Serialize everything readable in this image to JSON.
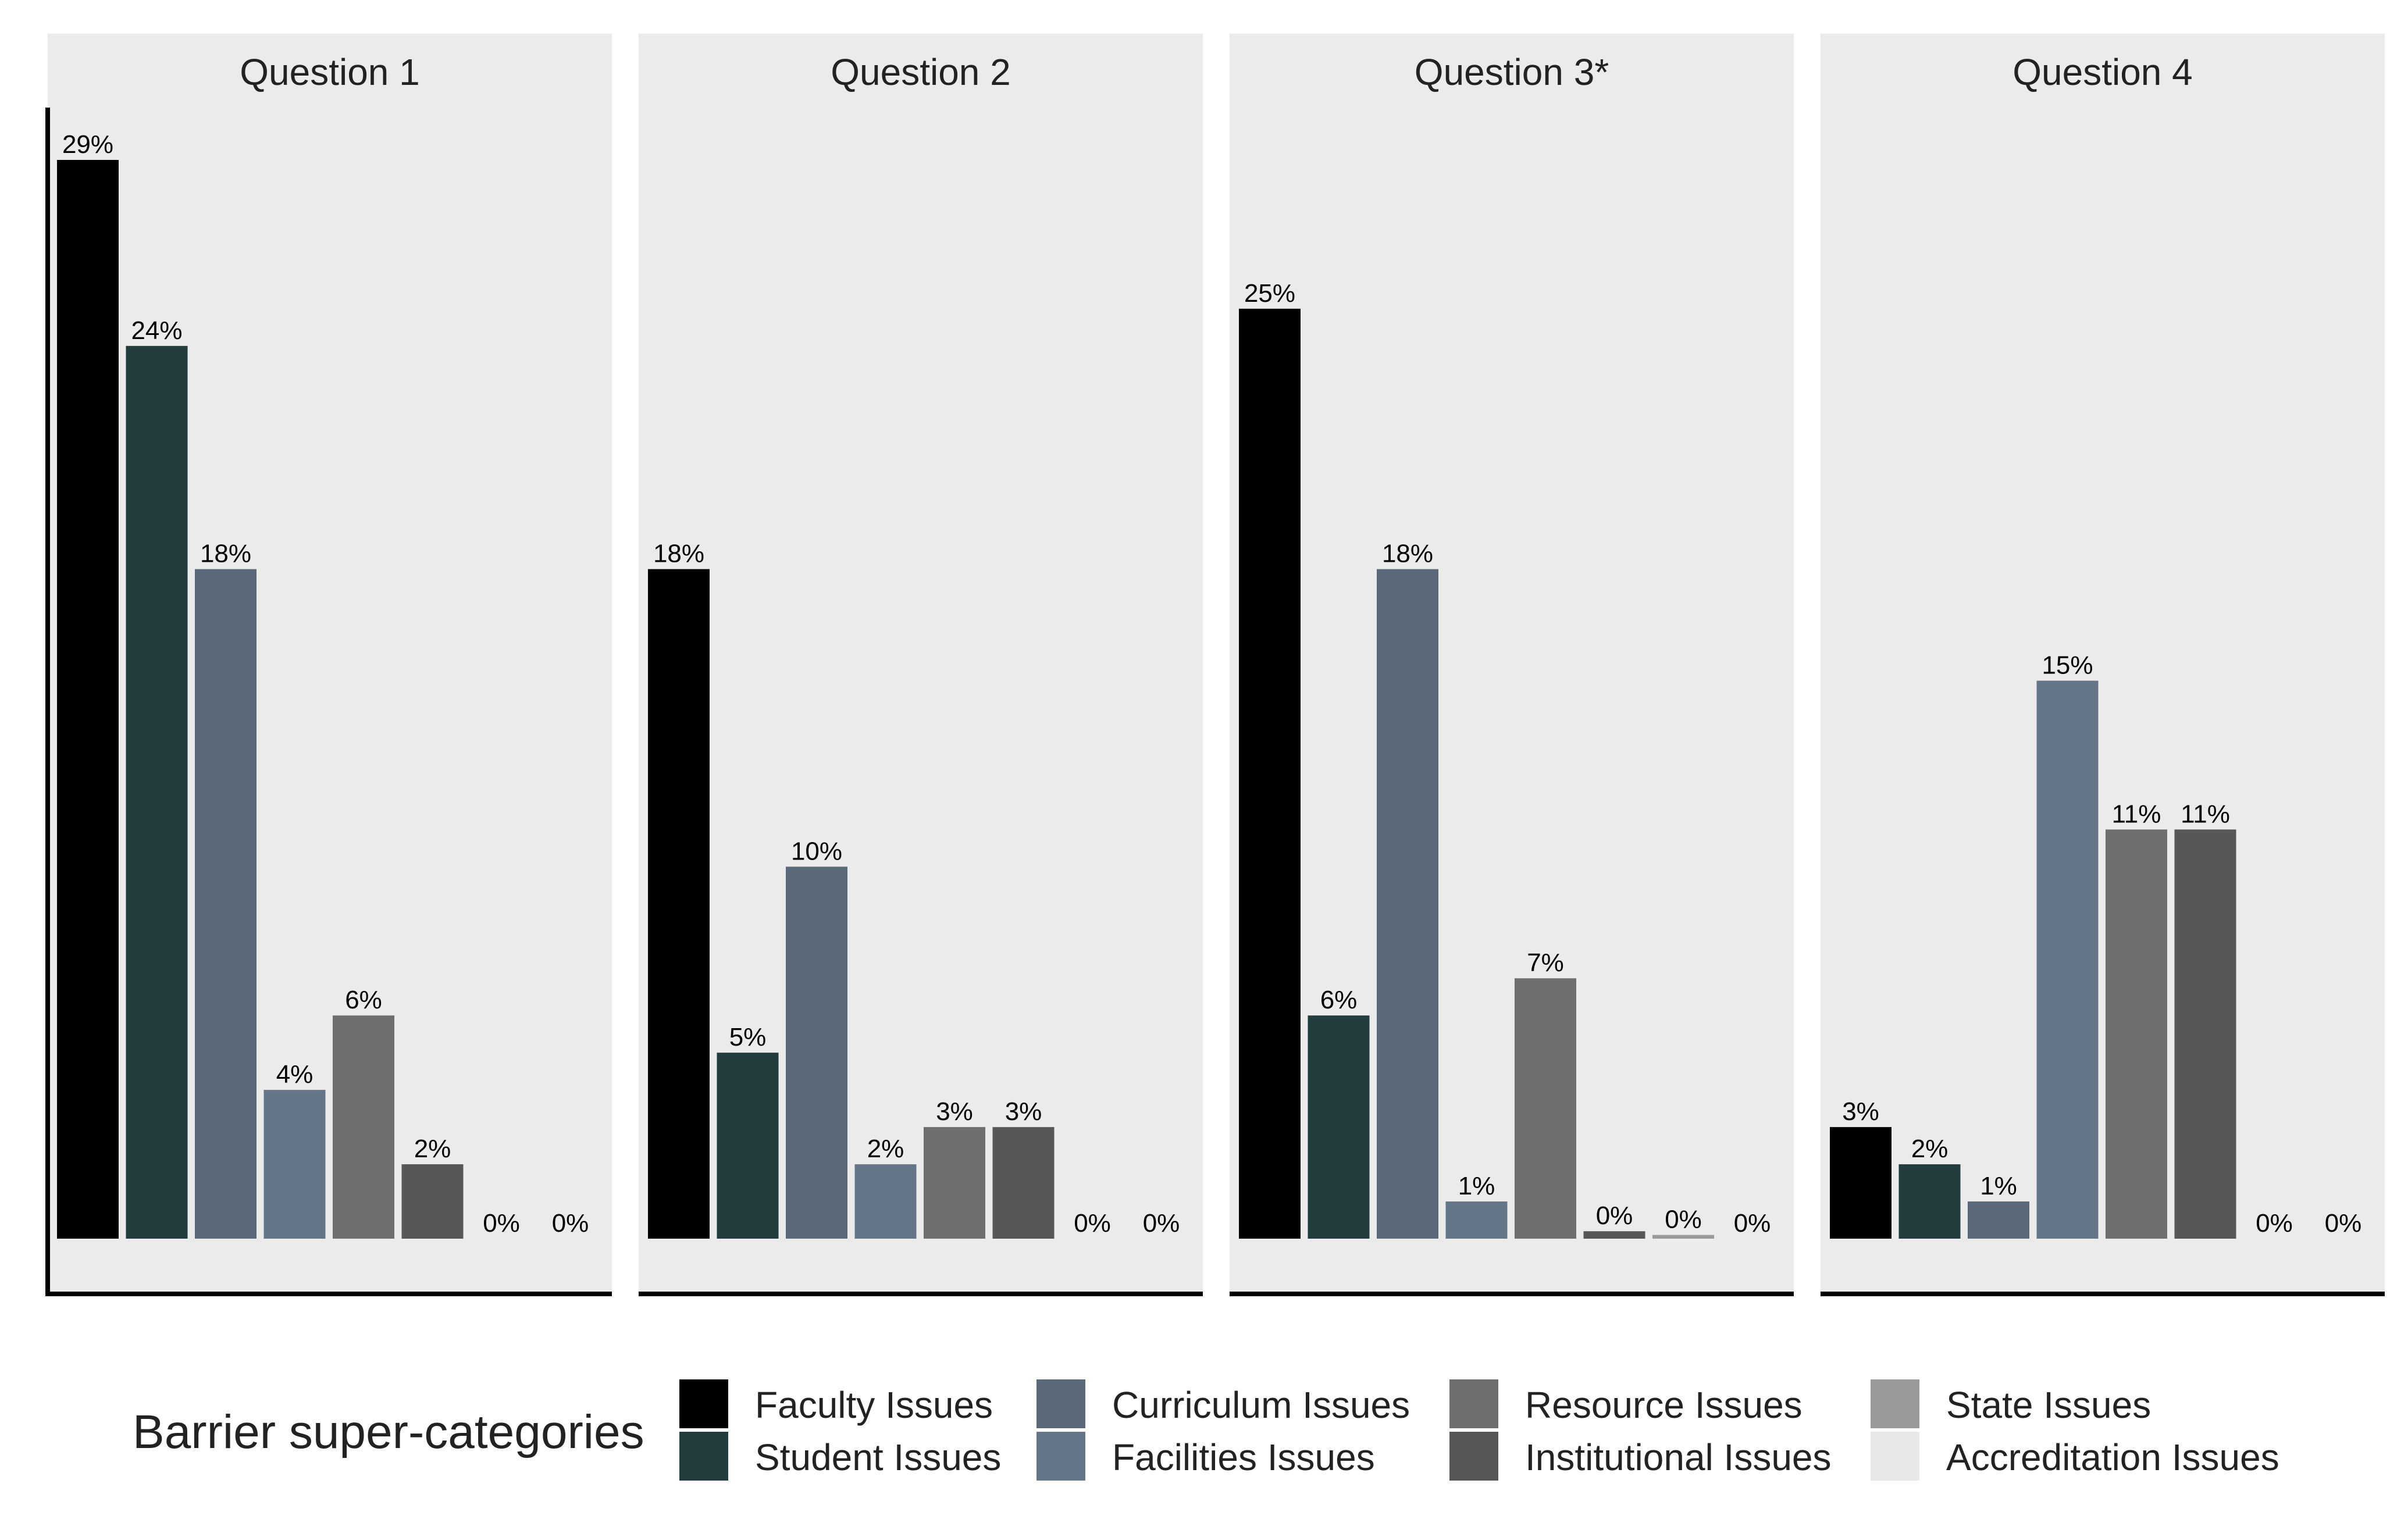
{
  "chart_data": {
    "type": "bar",
    "categories": [
      "Faculty Issues",
      "Student Issues",
      "Curriculum Issues",
      "Facilities Issues",
      "Resource Issues",
      "Institutional Issues",
      "State Issues",
      "Accreditation Issues"
    ],
    "colors": [
      "#000000",
      "#233d3e",
      "#5a6a7a",
      "#657689",
      "#6e6e6e",
      "#575757",
      "#9a9a9a",
      "#e8e8e8"
    ],
    "panels": [
      {
        "title": "Question 1",
        "values": [
          29,
          24,
          18,
          4,
          6,
          2,
          0,
          0
        ],
        "labels": [
          "29%",
          "24%",
          "18%",
          "4%",
          "6%",
          "2%",
          "0%",
          "0%"
        ]
      },
      {
        "title": "Question 2",
        "values": [
          18,
          5,
          10,
          2,
          3,
          3,
          0,
          0
        ],
        "labels": [
          "18%",
          "5%",
          "10%",
          "2%",
          "3%",
          "3%",
          "0%",
          "0%"
        ]
      },
      {
        "title": "Question 3*",
        "values": [
          25,
          6,
          18,
          1,
          7,
          0.2,
          0.1,
          0
        ],
        "labels": [
          "25%",
          "6%",
          "18%",
          "1%",
          "7%",
          "0%",
          "0%",
          "0%"
        ]
      },
      {
        "title": "Question 4",
        "values": [
          3,
          2,
          1,
          15,
          11,
          11,
          0,
          0
        ],
        "labels": [
          "3%",
          "2%",
          "1%",
          "15%",
          "11%",
          "11%",
          "0%",
          "0%"
        ]
      }
    ],
    "ylim": [
      0,
      29
    ],
    "grid": false,
    "legend": {
      "title": "Barrier super-categories",
      "placement": "bottom",
      "entries": [
        "Faculty Issues",
        "Student Issues",
        "Curriculum Issues",
        "Facilities Issues",
        "Resource Issues",
        "Institutional Issues",
        "State Issues",
        "Accreditation Issues"
      ]
    }
  }
}
